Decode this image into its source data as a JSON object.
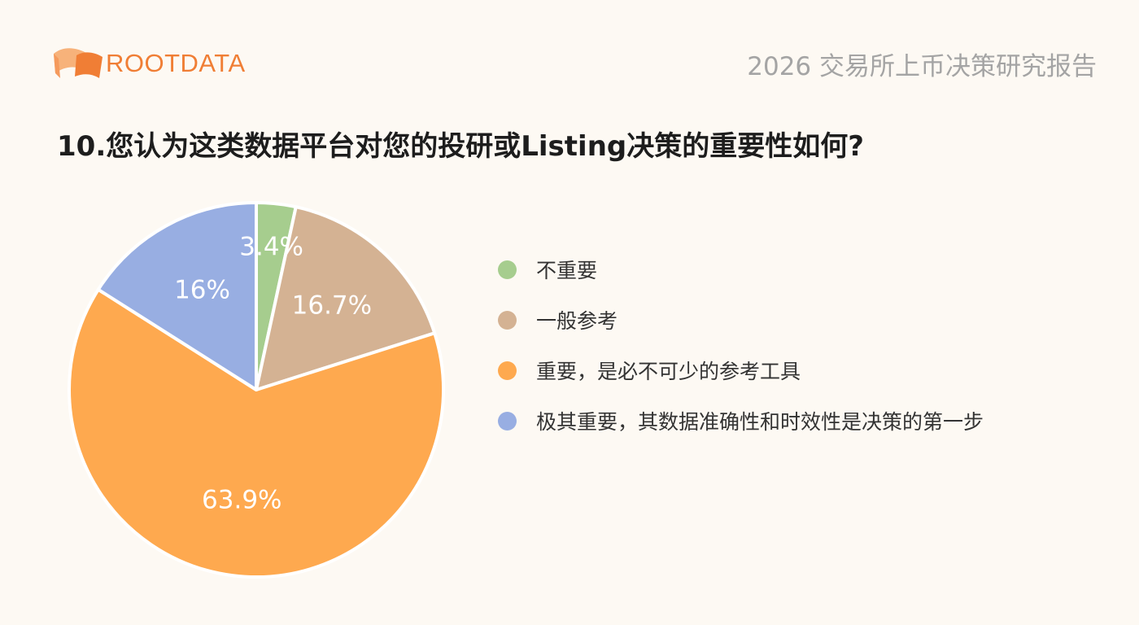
{
  "header": {
    "logo_text": "ROOTDATA",
    "report_title": "2026 交易所上币决策研究报告"
  },
  "question": "10.您认为这类数据平台对您的投研或Listing决策的重要性如何?",
  "colors": {
    "background": "#fdf9f3",
    "brand": "#f07e35"
  },
  "chart_data": {
    "type": "pie",
    "categories": [
      "不重要",
      "一般参考",
      "重要，是必不可少的参考工具",
      "极其重要，其数据准确性和时效性是决策的第一步"
    ],
    "values": [
      3.4,
      16.7,
      63.9,
      16
    ],
    "value_labels": [
      "3.4%",
      "16.7%",
      "63.9%",
      "16%"
    ],
    "colors": [
      "#a6cd8e",
      "#d4b293",
      "#fea94f",
      "#98aee2"
    ],
    "legend_position": "right",
    "start_angle_deg": 90,
    "direction": "clockwise"
  }
}
